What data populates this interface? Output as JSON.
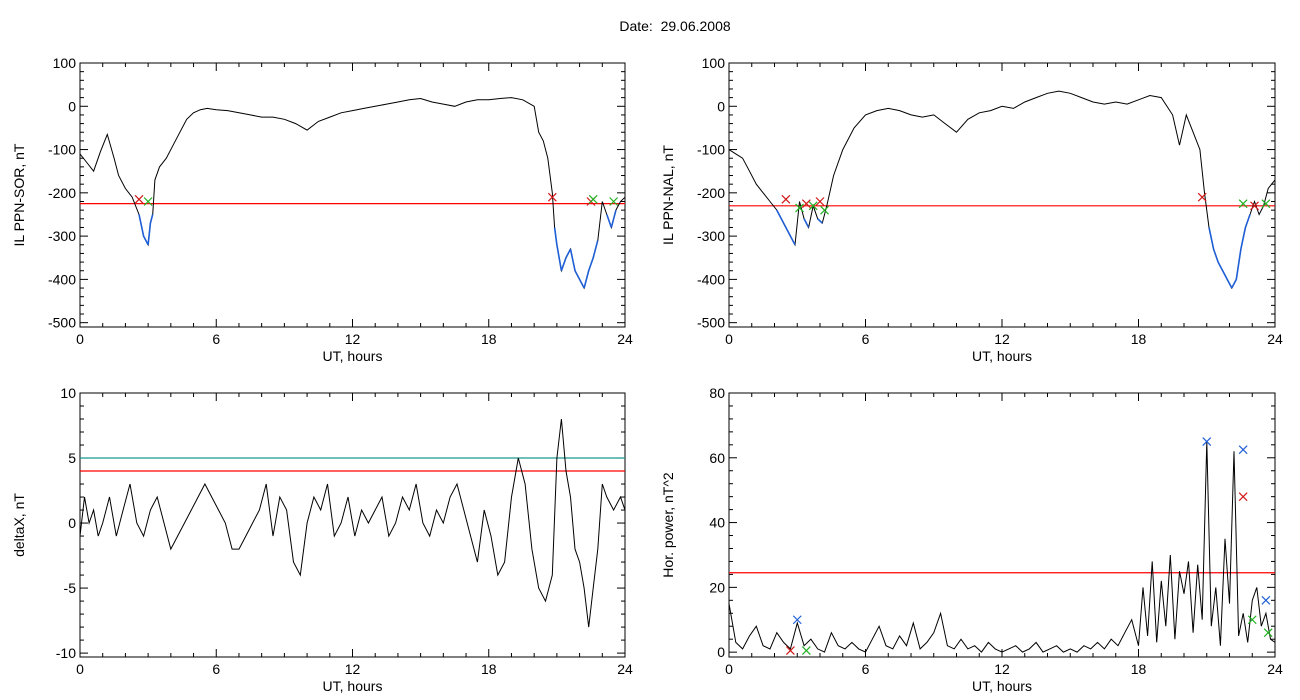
{
  "header": {
    "date_text": "Date:  29.06.2008"
  },
  "colors": {
    "threshold_red": "#ff0000",
    "threshold_teal": "#1a9a8c",
    "highlight_blue": "#1f5fd6",
    "marker_red": "#d01818",
    "marker_green": "#20b020",
    "marker_blue": "#1f5fd6",
    "trace": "#000000"
  },
  "chart_data": [
    {
      "id": "p1",
      "type": "line",
      "xlabel": "UT, hours",
      "ylabel": "IL PPN-SOR, nT",
      "xlim": [
        0,
        24
      ],
      "ylim": [
        -510,
        100
      ],
      "xticks": [
        0,
        6,
        12,
        18,
        24
      ],
      "yticks": [
        100,
        0,
        -100,
        -200,
        -300,
        -400,
        -500
      ],
      "thresholds": [
        {
          "y": -225,
          "color": "#ff0000"
        }
      ],
      "highlight_below": -225,
      "series": [
        {
          "x": [
            0.0,
            0.3,
            0.6,
            0.9,
            1.2,
            1.5,
            1.7,
            2.0,
            2.3,
            2.6,
            2.8,
            3.0,
            3.1,
            3.2,
            3.3,
            3.5,
            3.8,
            4.1,
            4.4,
            4.7,
            5.0,
            5.3,
            5.6,
            6.0,
            6.5,
            7.0,
            7.5,
            8.0,
            8.5,
            9.0,
            9.5,
            10.0,
            10.5,
            11.0,
            11.5,
            12.0,
            12.5,
            13.0,
            13.5,
            14.0,
            14.5,
            15.0,
            15.5,
            16.0,
            16.5,
            17.0,
            17.5,
            18.0,
            18.5,
            19.0,
            19.5,
            20.0,
            20.2,
            20.4,
            20.6,
            20.8,
            20.9,
            21.0,
            21.2,
            21.4,
            21.6,
            21.8,
            22.0,
            22.2,
            22.4,
            22.6,
            22.8,
            23.0,
            23.2,
            23.4,
            23.6,
            23.8,
            24.0
          ],
          "y": [
            -110,
            -130,
            -150,
            -105,
            -65,
            -120,
            -160,
            -190,
            -210,
            -250,
            -300,
            -320,
            -270,
            -250,
            -170,
            -140,
            -120,
            -90,
            -60,
            -30,
            -15,
            -8,
            -5,
            -8,
            -10,
            -15,
            -20,
            -25,
            -25,
            -30,
            -40,
            -55,
            -35,
            -25,
            -15,
            -10,
            -5,
            0,
            5,
            10,
            15,
            18,
            10,
            5,
            0,
            10,
            15,
            15,
            18,
            20,
            15,
            0,
            -60,
            -80,
            -120,
            -200,
            -280,
            -320,
            -380,
            -350,
            -330,
            -380,
            -400,
            -420,
            -380,
            -350,
            -310,
            -220,
            -250,
            -280,
            -240,
            -220,
            -210
          ]
        }
      ],
      "markers": [
        {
          "x": 2.6,
          "y": -215,
          "color": "#d01818"
        },
        {
          "x": 3.0,
          "y": -220,
          "color": "#20b020"
        },
        {
          "x": 20.8,
          "y": -210,
          "color": "#d01818"
        },
        {
          "x": 22.5,
          "y": -220,
          "color": "#d01818"
        },
        {
          "x": 22.6,
          "y": -215,
          "color": "#20b020"
        },
        {
          "x": 23.5,
          "y": -220,
          "color": "#20b020"
        }
      ]
    },
    {
      "id": "p2",
      "type": "line",
      "xlabel": "UT, hours",
      "ylabel": "IL PPN-NAL, nT",
      "xlim": [
        0,
        24
      ],
      "ylim": [
        -510,
        100
      ],
      "xticks": [
        0,
        6,
        12,
        18,
        24
      ],
      "yticks": [
        100,
        0,
        -100,
        -200,
        -300,
        -400,
        -500
      ],
      "thresholds": [
        {
          "y": -230,
          "color": "#ff0000"
        }
      ],
      "highlight_below": -230,
      "series": [
        {
          "x": [
            0.0,
            0.3,
            0.6,
            0.9,
            1.2,
            1.5,
            1.8,
            2.1,
            2.4,
            2.7,
            2.9,
            3.1,
            3.3,
            3.5,
            3.7,
            3.9,
            4.1,
            4.3,
            4.6,
            5.0,
            5.5,
            6.0,
            6.5,
            7.0,
            7.5,
            8.0,
            8.5,
            9.0,
            9.5,
            10.0,
            10.5,
            11.0,
            11.5,
            12.0,
            12.5,
            13.0,
            13.5,
            14.0,
            14.5,
            15.0,
            15.5,
            16.0,
            16.5,
            17.0,
            17.5,
            18.0,
            18.5,
            19.0,
            19.5,
            19.8,
            20.1,
            20.4,
            20.7,
            20.9,
            21.1,
            21.3,
            21.5,
            21.7,
            21.9,
            22.1,
            22.3,
            22.5,
            22.7,
            22.9,
            23.1,
            23.3,
            23.5,
            23.7,
            24.0
          ],
          "y": [
            -100,
            -110,
            -120,
            -150,
            -180,
            -200,
            -220,
            -240,
            -270,
            -300,
            -320,
            -220,
            -260,
            -280,
            -230,
            -260,
            -270,
            -230,
            -160,
            -100,
            -50,
            -20,
            -10,
            -5,
            -10,
            -20,
            -25,
            -20,
            -40,
            -60,
            -30,
            -15,
            -10,
            0,
            -5,
            10,
            20,
            30,
            35,
            30,
            20,
            10,
            5,
            10,
            5,
            15,
            25,
            20,
            -20,
            -90,
            -20,
            -60,
            -100,
            -200,
            -280,
            -330,
            -360,
            -380,
            -400,
            -420,
            -400,
            -330,
            -280,
            -250,
            -220,
            -250,
            -230,
            -190,
            -170
          ]
        }
      ],
      "markers": [
        {
          "x": 2.5,
          "y": -215,
          "color": "#d01818"
        },
        {
          "x": 3.1,
          "y": -235,
          "color": "#20b020"
        },
        {
          "x": 3.4,
          "y": -225,
          "color": "#d01818"
        },
        {
          "x": 3.7,
          "y": -230,
          "color": "#20b020"
        },
        {
          "x": 4.0,
          "y": -220,
          "color": "#d01818"
        },
        {
          "x": 4.2,
          "y": -240,
          "color": "#20b020"
        },
        {
          "x": 20.8,
          "y": -210,
          "color": "#d01818"
        },
        {
          "x": 22.6,
          "y": -225,
          "color": "#20b020"
        },
        {
          "x": 23.1,
          "y": -230,
          "color": "#d01818"
        },
        {
          "x": 23.6,
          "y": -225,
          "color": "#20b020"
        }
      ]
    },
    {
      "id": "p3",
      "type": "line",
      "xlabel": "UT, hours",
      "ylabel": "deltaX, nT",
      "xlim": [
        0,
        24
      ],
      "ylim": [
        -10.3,
        10
      ],
      "xticks": [
        0,
        6,
        12,
        18,
        24
      ],
      "yticks": [
        10,
        5,
        0,
        -5,
        -10
      ],
      "thresholds": [
        {
          "y": 5,
          "color": "#1a9a8c"
        },
        {
          "y": 4,
          "color": "#ff0000"
        }
      ],
      "series": [
        {
          "x": [
            0.0,
            0.2,
            0.4,
            0.6,
            0.8,
            1.0,
            1.3,
            1.6,
            1.9,
            2.2,
            2.5,
            2.8,
            3.1,
            3.4,
            3.7,
            4.0,
            4.3,
            4.6,
            4.9,
            5.2,
            5.5,
            5.8,
            6.1,
            6.4,
            6.7,
            7.0,
            7.3,
            7.6,
            7.9,
            8.2,
            8.5,
            8.8,
            9.1,
            9.4,
            9.7,
            10.0,
            10.3,
            10.6,
            10.9,
            11.2,
            11.5,
            11.8,
            12.1,
            12.4,
            12.7,
            13.0,
            13.3,
            13.6,
            13.9,
            14.2,
            14.5,
            14.8,
            15.1,
            15.4,
            15.7,
            16.0,
            16.3,
            16.6,
            16.9,
            17.2,
            17.5,
            17.8,
            18.1,
            18.4,
            18.7,
            19.0,
            19.3,
            19.6,
            19.9,
            20.2,
            20.5,
            20.8,
            21.0,
            21.2,
            21.4,
            21.6,
            21.8,
            22.0,
            22.2,
            22.4,
            22.6,
            22.8,
            23.0,
            23.2,
            23.5,
            23.8,
            24.0
          ],
          "y": [
            -1,
            2,
            0,
            1,
            -1,
            0,
            2,
            -1,
            1,
            3,
            0,
            -1,
            1,
            2,
            0,
            -2,
            -1,
            0,
            1,
            2,
            3,
            2,
            1,
            0,
            -2,
            -2,
            -1,
            0,
            1,
            3,
            -1,
            2,
            1,
            -3,
            -4,
            0,
            2,
            1,
            3,
            -1,
            0,
            2,
            -1,
            1,
            0,
            1,
            2,
            -1,
            0,
            2,
            1,
            3,
            0,
            -1,
            1,
            0,
            2,
            3,
            1,
            -1,
            -3,
            1,
            -1,
            -4,
            -3,
            2,
            5,
            3,
            -2,
            -5,
            -6,
            -4,
            5,
            8,
            4,
            2,
            -2,
            -3,
            -5,
            -8,
            -5,
            -2,
            3,
            2,
            1,
            2,
            1
          ]
        }
      ],
      "markers": []
    },
    {
      "id": "p4",
      "type": "line",
      "xlabel": "UT, hours",
      "ylabel": "Hor. power, nT^2",
      "xlim": [
        0,
        24
      ],
      "ylim": [
        -1.5,
        80
      ],
      "xticks": [
        0,
        6,
        12,
        18,
        24
      ],
      "yticks": [
        80,
        60,
        40,
        20,
        0
      ],
      "thresholds": [
        {
          "y": 24.5,
          "color": "#ff0000"
        }
      ],
      "series": [
        {
          "x": [
            0.0,
            0.3,
            0.6,
            0.9,
            1.2,
            1.5,
            1.8,
            2.1,
            2.4,
            2.7,
            3.0,
            3.3,
            3.6,
            3.9,
            4.2,
            4.5,
            4.8,
            5.1,
            5.4,
            5.7,
            6.0,
            6.3,
            6.6,
            6.9,
            7.2,
            7.5,
            7.8,
            8.1,
            8.4,
            8.7,
            9.0,
            9.3,
            9.6,
            9.9,
            10.2,
            10.5,
            10.8,
            11.1,
            11.4,
            11.7,
            12.0,
            12.3,
            12.6,
            12.9,
            13.2,
            13.5,
            13.8,
            14.1,
            14.4,
            14.7,
            15.0,
            15.3,
            15.6,
            15.9,
            16.2,
            16.5,
            16.8,
            17.1,
            17.4,
            17.7,
            18.0,
            18.2,
            18.4,
            18.6,
            18.8,
            19.0,
            19.2,
            19.4,
            19.6,
            19.8,
            20.0,
            20.2,
            20.4,
            20.6,
            20.8,
            21.0,
            21.2,
            21.4,
            21.6,
            21.8,
            22.0,
            22.2,
            22.4,
            22.6,
            22.8,
            23.0,
            23.2,
            23.4,
            23.6,
            23.8,
            24.0
          ],
          "y": [
            15,
            3,
            1,
            5,
            8,
            2,
            1,
            6,
            3,
            1,
            9,
            2,
            4,
            1,
            0,
            6,
            2,
            1,
            3,
            1,
            0,
            4,
            8,
            2,
            1,
            5,
            2,
            9,
            1,
            3,
            6,
            12,
            2,
            1,
            4,
            1,
            2,
            0,
            3,
            1,
            0,
            1,
            2,
            0,
            1,
            3,
            0,
            1,
            2,
            0,
            1,
            0,
            2,
            1,
            3,
            1,
            4,
            2,
            6,
            10,
            2,
            20,
            5,
            28,
            3,
            22,
            8,
            30,
            4,
            25,
            18,
            28,
            6,
            27,
            10,
            65,
            8,
            20,
            2,
            35,
            15,
            62,
            5,
            12,
            3,
            16,
            20,
            8,
            12,
            4,
            3
          ]
        }
      ],
      "markers": [
        {
          "x": 2.7,
          "y": 0.5,
          "color": "#d01818"
        },
        {
          "x": 3.0,
          "y": 10,
          "color": "#1f5fd6"
        },
        {
          "x": 3.4,
          "y": 0.5,
          "color": "#20b020"
        },
        {
          "x": 21.0,
          "y": 65,
          "color": "#1f5fd6"
        },
        {
          "x": 22.6,
          "y": 62.5,
          "color": "#1f5fd6"
        },
        {
          "x": 22.6,
          "y": 48,
          "color": "#d01818"
        },
        {
          "x": 23.0,
          "y": 10,
          "color": "#20b020"
        },
        {
          "x": 23.6,
          "y": 16,
          "color": "#1f5fd6"
        },
        {
          "x": 23.7,
          "y": 6,
          "color": "#20b020"
        }
      ]
    }
  ]
}
